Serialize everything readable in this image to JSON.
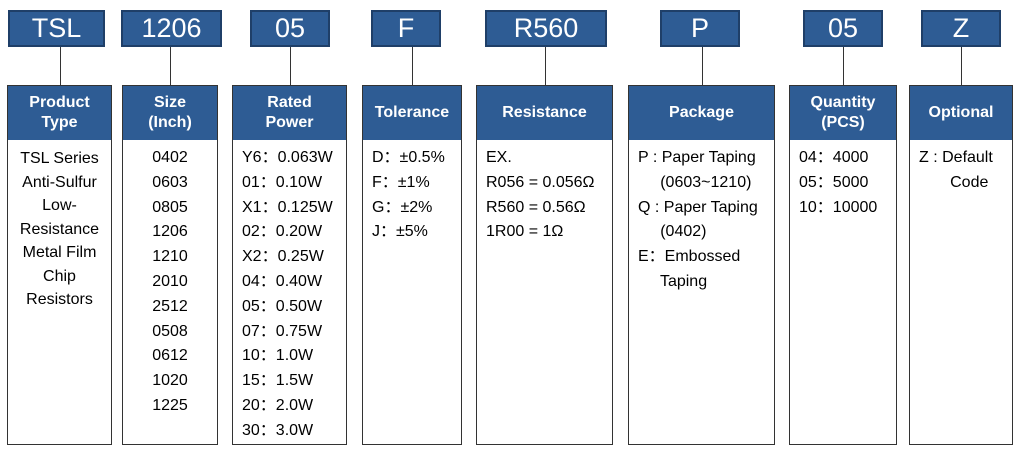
{
  "columns": [
    {
      "code": "TSL",
      "header": "Product\nType",
      "kind": "desc",
      "lines": [
        "TSL Series",
        "Anti-Sulfur",
        "Low-",
        "Resistance",
        "Metal Film",
        "Chip",
        "Resistors"
      ]
    },
    {
      "code": "1206",
      "header": "Size\n(Inch)",
      "kind": "center",
      "lines": [
        "0402",
        "0603",
        "0805",
        "1206",
        "1210",
        "2010",
        "2512",
        "0508",
        "0612",
        "1020",
        "1225"
      ]
    },
    {
      "code": "05",
      "header": "Rated\nPower",
      "kind": "left",
      "lines": [
        "Y6：0.063W",
        "01：0.10W",
        "X1：0.125W",
        "02：0.20W",
        "X2：0.25W",
        "04：0.40W",
        "05：0.50W",
        "07：0.75W",
        "10：1.0W",
        "15：1.5W",
        "20：2.0W",
        "30：3.0W"
      ]
    },
    {
      "code": "F",
      "header": "Tolerance",
      "kind": "left",
      "lines": [
        "D：±0.5%",
        "F：±1%",
        "G：±2%",
        "J：±5%"
      ]
    },
    {
      "code": "R560",
      "header": "Resistance",
      "kind": "left",
      "lines": [
        "EX.",
        "R056 = 0.056Ω",
        "R560 = 0.56Ω",
        "1R00 = 1Ω"
      ]
    },
    {
      "code": "P",
      "header": "Package",
      "kind": "left",
      "lines": [
        "P : Paper Taping",
        "     (0603~1210)",
        "Q : Paper Taping",
        "     (0402)",
        "E：Embossed",
        "     Taping"
      ]
    },
    {
      "code": "05",
      "header": "Quantity\n(PCS)",
      "kind": "left",
      "lines": [
        "04：4000",
        "05：5000",
        "10：10000"
      ]
    },
    {
      "code": "Z",
      "header": "Optional",
      "kind": "left",
      "lines": [
        "Z : Default",
        "       Code"
      ]
    }
  ]
}
